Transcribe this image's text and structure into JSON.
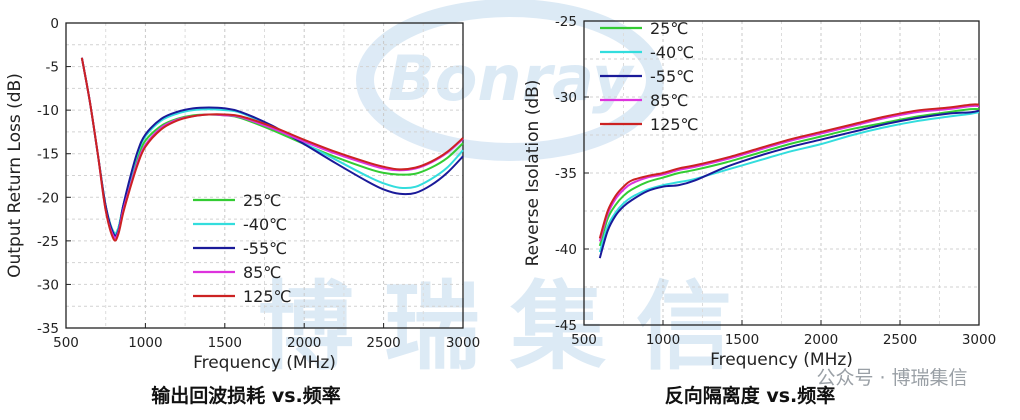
{
  "watermark": {
    "logo_text": "Bonray",
    "big_text": "博瑞集信",
    "footer_source": "公众号 · 博瑞集信"
  },
  "chart_data": [
    {
      "type": "line",
      "caption": "输出回波损耗 vs.频率",
      "xlabel": "Frequency (MHz)",
      "ylabel": "Output Return Loss (dB)",
      "xlim": [
        500,
        3000
      ],
      "ylim": [
        -35,
        0
      ],
      "xticks": [
        500,
        1000,
        1500,
        2000,
        2500,
        3000
      ],
      "yticks": [
        0,
        -5,
        -10,
        -15,
        -20,
        -25,
        -30,
        -35
      ],
      "grid": true,
      "legend_position": "lower-center",
      "series": [
        {
          "name": "25℃",
          "color": "#33cc33",
          "x": [
            600,
            650,
            700,
            750,
            800,
            830,
            860,
            900,
            950,
            1000,
            1100,
            1200,
            1300,
            1400,
            1500,
            1600,
            1800,
            2000,
            2200,
            2400,
            2500,
            2600,
            2700,
            2800,
            2900,
            3000
          ],
          "y": [
            -4,
            -9,
            -15,
            -21,
            -24,
            -23.5,
            -21,
            -18.5,
            -15.5,
            -13.5,
            -11.8,
            -11,
            -10.6,
            -10.5,
            -10.6,
            -10.9,
            -12.3,
            -13.9,
            -15.4,
            -16.7,
            -17.2,
            -17.4,
            -17.3,
            -16.6,
            -15.5,
            -13.8
          ]
        },
        {
          "name": "-40℃",
          "color": "#33dddd",
          "x": [
            600,
            650,
            700,
            750,
            800,
            830,
            860,
            900,
            950,
            1000,
            1100,
            1200,
            1300,
            1400,
            1500,
            1600,
            1800,
            2000,
            2200,
            2400,
            2500,
            2600,
            2700,
            2800,
            2900,
            3000
          ],
          "y": [
            -4,
            -9,
            -15,
            -21,
            -24,
            -23.5,
            -21,
            -18.2,
            -15,
            -13,
            -11.2,
            -10.4,
            -10,
            -9.9,
            -10,
            -10.3,
            -11.9,
            -13.8,
            -15.7,
            -17.6,
            -18.4,
            -18.9,
            -18.8,
            -17.9,
            -16.6,
            -14.6
          ]
        },
        {
          "name": "-55℃",
          "color": "#1a1a99",
          "x": [
            600,
            650,
            700,
            750,
            800,
            830,
            860,
            900,
            950,
            1000,
            1100,
            1200,
            1300,
            1400,
            1500,
            1600,
            1800,
            2000,
            2200,
            2400,
            2500,
            2600,
            2700,
            2800,
            2900,
            3000
          ],
          "y": [
            -4,
            -9,
            -15,
            -21,
            -24.2,
            -23.8,
            -21,
            -18,
            -14.8,
            -12.8,
            -11,
            -10.2,
            -9.8,
            -9.7,
            -9.8,
            -10.2,
            -11.8,
            -13.9,
            -16.1,
            -18.2,
            -19.1,
            -19.6,
            -19.5,
            -18.6,
            -17.2,
            -15.3
          ]
        },
        {
          "name": "85℃",
          "color": "#dd33dd",
          "x": [
            600,
            650,
            700,
            750,
            800,
            830,
            860,
            900,
            950,
            1000,
            1100,
            1200,
            1300,
            1400,
            1500,
            1600,
            1800,
            2000,
            2200,
            2400,
            2500,
            2600,
            2700,
            2800,
            2900,
            3000
          ],
          "y": [
            -4,
            -9,
            -15,
            -21.5,
            -24.5,
            -24,
            -21.5,
            -19,
            -16,
            -14,
            -12,
            -11.1,
            -10.7,
            -10.5,
            -10.6,
            -10.8,
            -12.1,
            -13.6,
            -15,
            -16.2,
            -16.7,
            -16.9,
            -16.7,
            -16,
            -14.9,
            -13.3
          ]
        },
        {
          "name": "125℃",
          "color": "#cc2222",
          "x": [
            600,
            650,
            700,
            750,
            800,
            830,
            860,
            900,
            950,
            1000,
            1100,
            1200,
            1300,
            1400,
            1500,
            1600,
            1800,
            2000,
            2200,
            2400,
            2500,
            2600,
            2700,
            2800,
            2900,
            3000
          ],
          "y": [
            -4,
            -9,
            -15,
            -21.5,
            -24.8,
            -24.2,
            -21.8,
            -19.2,
            -16.3,
            -14.2,
            -12.2,
            -11.2,
            -10.7,
            -10.5,
            -10.5,
            -10.7,
            -11.9,
            -13.4,
            -14.8,
            -16,
            -16.5,
            -16.8,
            -16.6,
            -15.9,
            -14.8,
            -13.2
          ]
        }
      ]
    },
    {
      "type": "line",
      "caption": "反向隔离度 vs.频率",
      "xlabel": "Frequency (MHz)",
      "ylabel": "Reverse Isolation (dB)",
      "xlim": [
        500,
        3000
      ],
      "ylim": [
        -45,
        -25
      ],
      "xticks": [
        500,
        1000,
        1500,
        2000,
        2500,
        3000
      ],
      "yticks": [
        -25,
        -30,
        -35,
        -40,
        -45
      ],
      "grid": true,
      "legend_position": "top-left",
      "series": [
        {
          "name": "25℃",
          "color": "#33cc33",
          "x": [
            600,
            650,
            700,
            750,
            800,
            900,
            1000,
            1100,
            1200,
            1400,
            1600,
            1800,
            2000,
            2200,
            2400,
            2600,
            2800,
            2950,
            3000
          ],
          "y": [
            -39.8,
            -38,
            -37.1,
            -36.5,
            -36.1,
            -35.6,
            -35.3,
            -35,
            -34.8,
            -34.3,
            -33.7,
            -33.1,
            -32.6,
            -32.1,
            -31.7,
            -31.3,
            -31,
            -30.8,
            -30.8
          ]
        },
        {
          "name": "-40℃",
          "color": "#33dddd",
          "x": [
            600,
            650,
            700,
            750,
            800,
            900,
            1000,
            1100,
            1200,
            1400,
            1600,
            1800,
            2000,
            2200,
            2400,
            2600,
            2800,
            2950,
            3000
          ],
          "y": [
            -40.2,
            -38.5,
            -37.6,
            -37,
            -36.6,
            -36.1,
            -35.8,
            -35.6,
            -35.4,
            -34.8,
            -34.2,
            -33.6,
            -33.1,
            -32.5,
            -32,
            -31.6,
            -31.3,
            -31.1,
            -31
          ]
        },
        {
          "name": "-55℃",
          "color": "#1a1a99",
          "x": [
            600,
            650,
            700,
            750,
            800,
            900,
            1000,
            1100,
            1200,
            1400,
            1600,
            1800,
            2000,
            2200,
            2400,
            2600,
            2800,
            2950,
            3000
          ],
          "y": [
            -40.6,
            -38.8,
            -37.8,
            -37.2,
            -36.8,
            -36.2,
            -35.9,
            -35.8,
            -35.5,
            -34.6,
            -33.9,
            -33.3,
            -32.8,
            -32.3,
            -31.8,
            -31.4,
            -31.1,
            -31,
            -30.9
          ]
        },
        {
          "name": "85℃",
          "color": "#dd33dd",
          "x": [
            600,
            650,
            700,
            750,
            800,
            900,
            1000,
            1100,
            1200,
            1400,
            1600,
            1800,
            2000,
            2200,
            2400,
            2600,
            2800,
            2950,
            3000
          ],
          "y": [
            -39.5,
            -37.7,
            -36.7,
            -36.1,
            -35.7,
            -35.3,
            -35.1,
            -34.8,
            -34.6,
            -34.1,
            -33.5,
            -32.9,
            -32.4,
            -31.9,
            -31.4,
            -31,
            -30.8,
            -30.6,
            -30.6
          ]
        },
        {
          "name": "125℃",
          "color": "#cc2222",
          "x": [
            600,
            650,
            700,
            750,
            800,
            900,
            1000,
            1100,
            1200,
            1400,
            1600,
            1800,
            2000,
            2200,
            2400,
            2600,
            2800,
            2950,
            3000
          ],
          "y": [
            -39.3,
            -37.5,
            -36.5,
            -35.9,
            -35.5,
            -35.2,
            -35,
            -34.7,
            -34.5,
            -34,
            -33.4,
            -32.8,
            -32.3,
            -31.8,
            -31.3,
            -30.9,
            -30.7,
            -30.5,
            -30.5
          ]
        }
      ]
    }
  ]
}
